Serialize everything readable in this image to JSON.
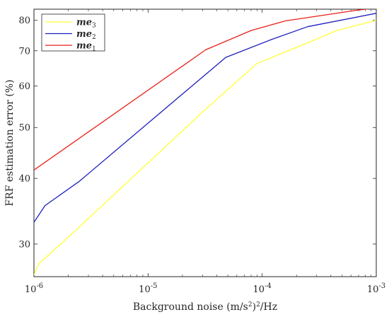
{
  "chart_data": {
    "type": "line",
    "xscale": "log",
    "yscale": "log",
    "xlim": [
      1e-06,
      0.001
    ],
    "ylim": [
      26,
      84
    ],
    "xticks": [
      1e-06,
      1e-05,
      0.0001,
      0.001
    ],
    "xtick_labels": [
      {
        "base": "10",
        "exp": "-6"
      },
      {
        "base": "10",
        "exp": "-5"
      },
      {
        "base": "10",
        "exp": "-4"
      },
      {
        "base": "10",
        "exp": "-3"
      }
    ],
    "yticks": [
      30,
      40,
      50,
      60,
      70,
      80
    ],
    "ytick_labels": [
      "30",
      "40",
      "50",
      "60",
      "70",
      "80"
    ],
    "xlabel": {
      "prefix": "Background noise (m/s",
      "sup": "2",
      "suffix": ")",
      "sup2": "2",
      "tail": "/Hz"
    },
    "ylabel": "FRF estimation error (%)",
    "grid": false,
    "legend_position": "top-left",
    "series": [
      {
        "name": "me₃",
        "legend": {
          "main": "me",
          "sub": "3"
        },
        "color": "#ffff33",
        "x": [
          1e-06,
          1.1e-06,
          2.2e-06,
          3e-05,
          9e-05,
          0.00025,
          0.00045,
          0.001
        ],
        "y": [
          26.2,
          27.5,
          31.5,
          53.5,
          66.2,
          72.5,
          76.5,
          80.0
        ]
      },
      {
        "name": "me₂",
        "legend": {
          "main": "me",
          "sub": "2"
        },
        "color": "#1f1fbf",
        "x": [
          1e-06,
          1.25e-06,
          2.5e-06,
          4.8e-05,
          0.00012,
          0.00025,
          0.001
        ],
        "y": [
          33.0,
          35.5,
          39.5,
          68.0,
          73.5,
          77.8,
          82.5
        ]
      },
      {
        "name": "me₁",
        "legend": {
          "main": "me",
          "sub": "1"
        },
        "color": "#e8211b",
        "x": [
          1e-06,
          3.2e-05,
          8e-05,
          0.00016,
          0.00065,
          0.001
        ],
        "y": [
          41.5,
          70.3,
          76.5,
          79.8,
          83.5,
          84.5
        ]
      }
    ]
  }
}
